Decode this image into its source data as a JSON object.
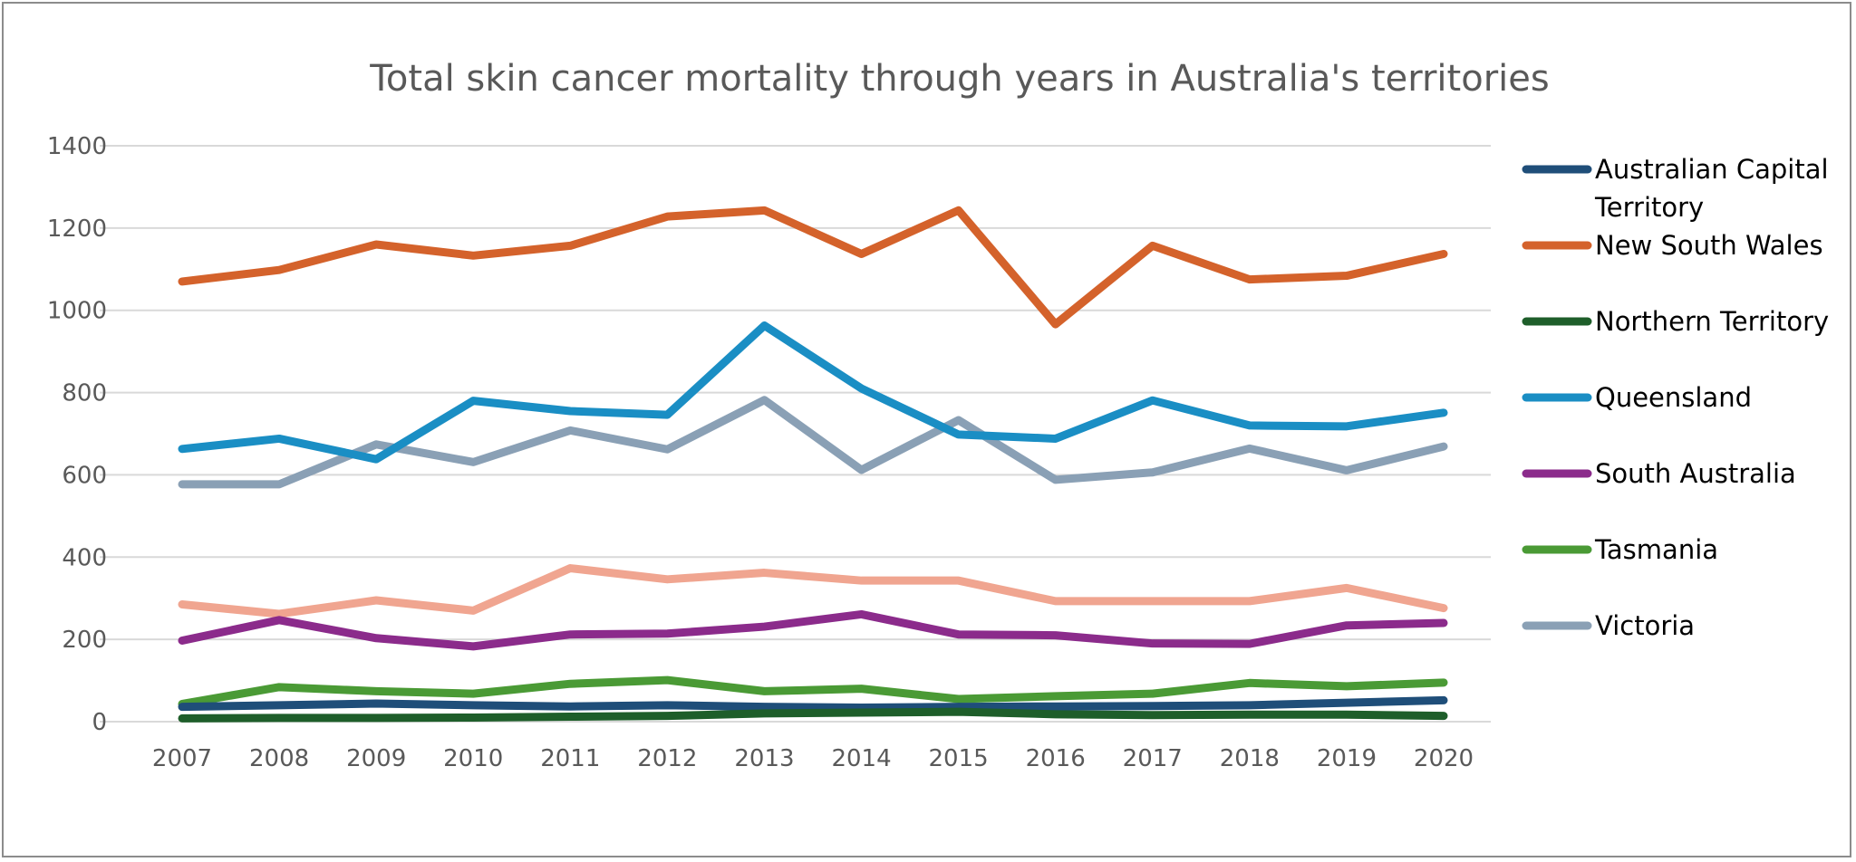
{
  "chart_data": {
    "type": "line",
    "title": "Total skin cancer mortality through years in Australia's territories",
    "xlabel": "",
    "ylabel": "",
    "categories": [
      "2007",
      "2008",
      "2009",
      "2010",
      "2011",
      "2012",
      "2013",
      "2014",
      "2015",
      "2016",
      "2017",
      "2018",
      "2019",
      "2020"
    ],
    "ylim": [
      0,
      1400
    ],
    "yticks": [
      0,
      200,
      400,
      600,
      800,
      1000,
      1200,
      1400
    ],
    "grid": true,
    "legend_position": "right",
    "series": [
      {
        "name": "Australian Capital Territory",
        "color": "#1f4e79",
        "legend": true,
        "values": [
          36,
          40,
          44,
          40,
          37,
          40,
          36,
          34,
          36,
          37,
          38,
          40,
          46,
          52
        ]
      },
      {
        "name": "New South Wales",
        "color": "#d4622b",
        "legend": true,
        "values": [
          1070,
          1098,
          1160,
          1133,
          1157,
          1228,
          1243,
          1137,
          1243,
          966,
          1157,
          1075,
          1084,
          1137
        ]
      },
      {
        "name": "Northern Territory",
        "color": "#1e5e2a",
        "legend": true,
        "values": [
          8,
          9,
          9,
          10,
          12,
          14,
          20,
          22,
          24,
          18,
          16,
          17,
          17,
          14
        ]
      },
      {
        "name": "Queensland",
        "color": "#1a8ec4",
        "legend": true,
        "values": [
          663,
          688,
          638,
          780,
          755,
          746,
          963,
          810,
          698,
          688,
          781,
          720,
          718,
          751
        ]
      },
      {
        "name": "South Australia",
        "color": "#8b2b8b",
        "legend": true,
        "values": [
          197,
          247,
          203,
          183,
          212,
          214,
          231,
          261,
          212,
          210,
          190,
          189,
          234,
          240
        ]
      },
      {
        "name": "Tasmania",
        "color": "#4a9a35",
        "legend": true,
        "values": [
          43,
          84,
          74,
          68,
          92,
          101,
          74,
          80,
          55,
          62,
          68,
          94,
          86,
          95
        ]
      },
      {
        "name": "Victoria",
        "color": "#8aa0b5",
        "legend": true,
        "values": [
          577,
          577,
          674,
          631,
          708,
          662,
          782,
          612,
          733,
          588,
          606,
          664,
          611,
          669
        ]
      },
      {
        "name": "",
        "color": "#f0a590",
        "legend": false,
        "values": [
          285,
          262,
          295,
          270,
          373,
          346,
          362,
          343,
          343,
          293,
          293,
          293,
          325,
          276
        ]
      }
    ]
  }
}
